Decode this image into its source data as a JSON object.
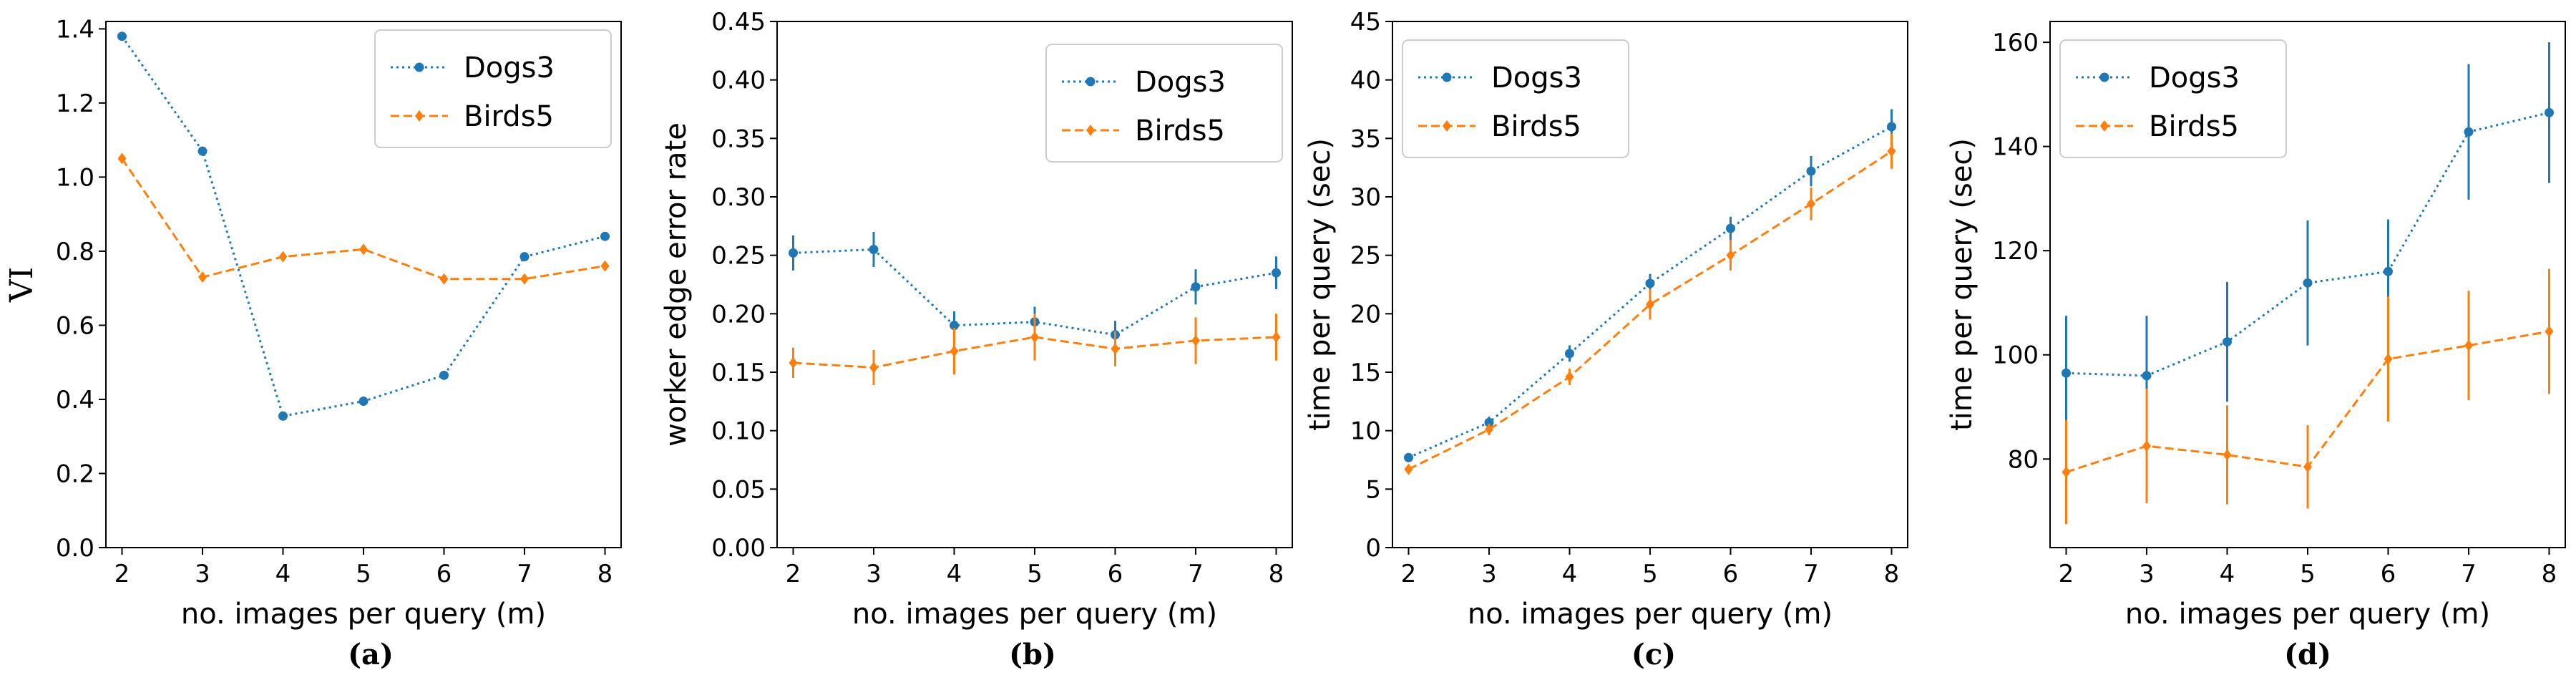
{
  "colors": {
    "Dogs3": "#1f77b4",
    "Birds5": "#ff7f0e"
  },
  "chart_data": [
    {
      "panel": "a",
      "caption": "(a)",
      "type": "line",
      "xlabel": "no. images per query (m)",
      "ylabel": "VI",
      "x": [
        2,
        3,
        4,
        5,
        6,
        7,
        8
      ],
      "xlim": [
        1.8,
        8.2
      ],
      "ylim": [
        0.0,
        1.42
      ],
      "yticks": [
        "0.0",
        "0.2",
        "0.4",
        "0.6",
        "0.8",
        "1.0",
        "1.2",
        "1.4"
      ],
      "legend_position": "top-right",
      "grid": false,
      "series": [
        {
          "name": "Dogs3",
          "style": "dotted",
          "marker": "circle",
          "values": [
            1.38,
            1.07,
            0.355,
            0.395,
            0.465,
            0.785,
            0.84
          ]
        },
        {
          "name": "Birds5",
          "style": "dashed",
          "marker": "diamond",
          "values": [
            1.05,
            0.73,
            0.785,
            0.805,
            0.725,
            0.725,
            0.76
          ]
        }
      ]
    },
    {
      "panel": "b",
      "caption": "(b)",
      "type": "line",
      "xlabel": "no. images per query (m)",
      "ylabel": "worker edge error rate",
      "x": [
        2,
        3,
        4,
        5,
        6,
        7,
        8
      ],
      "xlim": [
        1.8,
        8.2
      ],
      "ylim": [
        0.0,
        0.45
      ],
      "yticks": [
        "0.00",
        "0.05",
        "0.10",
        "0.15",
        "0.20",
        "0.25",
        "0.30",
        "0.35",
        "0.40",
        "0.45"
      ],
      "legend_position": "top-right",
      "grid": false,
      "series": [
        {
          "name": "Dogs3",
          "style": "dotted",
          "marker": "circle",
          "values": [
            0.252,
            0.255,
            0.19,
            0.193,
            0.182,
            0.223,
            0.235
          ],
          "errors": [
            0.015,
            0.015,
            0.012,
            0.013,
            0.012,
            0.015,
            0.014
          ]
        },
        {
          "name": "Birds5",
          "style": "dashed",
          "marker": "diamond",
          "values": [
            0.158,
            0.154,
            0.168,
            0.18,
            0.17,
            0.177,
            0.18
          ],
          "errors": [
            0.013,
            0.015,
            0.02,
            0.02,
            0.015,
            0.02,
            0.02
          ]
        }
      ]
    },
    {
      "panel": "c",
      "caption": "(c)",
      "type": "line",
      "xlabel": "no. images per query (m)",
      "ylabel": "time per query (sec)",
      "x": [
        2,
        3,
        4,
        5,
        6,
        7,
        8
      ],
      "xlim": [
        1.8,
        8.2
      ],
      "ylim": [
        0,
        45
      ],
      "yticks": [
        "0",
        "5",
        "10",
        "15",
        "20",
        "25",
        "30",
        "35",
        "40",
        "45"
      ],
      "legend_position": "top-left",
      "grid": false,
      "series": [
        {
          "name": "Dogs3",
          "style": "dotted",
          "marker": "circle",
          "values": [
            7.7,
            10.7,
            16.6,
            22.6,
            27.3,
            32.2,
            36.0
          ],
          "errors": [
            0.3,
            0.5,
            0.7,
            0.8,
            1.0,
            1.3,
            1.5
          ]
        },
        {
          "name": "Birds5",
          "style": "dashed",
          "marker": "diamond",
          "values": [
            6.7,
            10.1,
            14.6,
            20.8,
            25.0,
            29.4,
            33.9
          ],
          "errors": [
            0.3,
            0.5,
            0.7,
            1.3,
            1.3,
            1.4,
            1.5
          ]
        }
      ]
    },
    {
      "panel": "d",
      "caption": "(d)",
      "type": "line",
      "xlabel": "no. images per query (m)",
      "ylabel": "time per query (sec)",
      "x": [
        2,
        3,
        4,
        5,
        6,
        7,
        8
      ],
      "xlim": [
        1.8,
        8.2
      ],
      "ylim": [
        63,
        164
      ],
      "yticks": [
        "80",
        "100",
        "120",
        "140",
        "160"
      ],
      "ytick_values": [
        80,
        100,
        120,
        140,
        160
      ],
      "legend_position": "top-left",
      "grid": false,
      "series": [
        {
          "name": "Dogs3",
          "style": "dotted",
          "marker": "circle",
          "values": [
            96.5,
            96.0,
            102.5,
            113.8,
            116.0,
            142.8,
            146.5
          ],
          "errors": [
            11,
            11.5,
            11.5,
            12,
            10,
            13,
            13.5
          ]
        },
        {
          "name": "Birds5",
          "style": "dashed",
          "marker": "diamond",
          "values": [
            77.5,
            82.5,
            80.8,
            78.5,
            99.2,
            101.8,
            104.5
          ],
          "errors": [
            10,
            11,
            9.5,
            8,
            12,
            10.5,
            12
          ]
        }
      ]
    }
  ]
}
